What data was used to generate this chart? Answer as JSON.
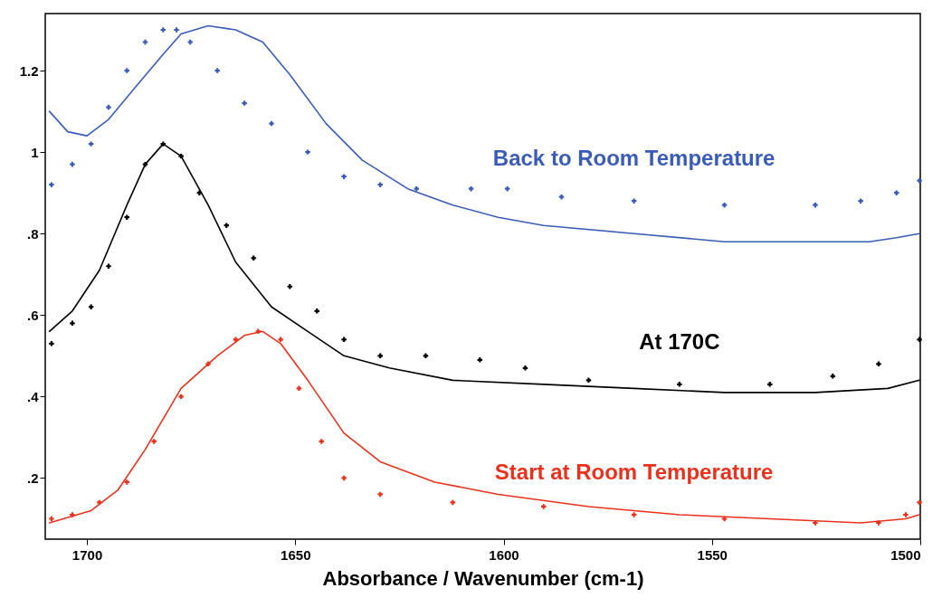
{
  "chart_data": {
    "type": "line",
    "xlabel": "Absorbance / Wavenumber (cm-1)",
    "xlim": [
      1710,
      1500
    ],
    "xticks": [
      1700,
      1650,
      1600,
      1550,
      1500
    ],
    "ylim": [
      0.05,
      1.34
    ],
    "yticks": [
      {
        "value": 0.2,
        "label": ".2"
      },
      {
        "value": 0.4,
        "label": ".4"
      },
      {
        "value": 0.6,
        "label": ".6"
      },
      {
        "value": 0.8,
        "label": ".8"
      },
      1,
      1.2
    ],
    "grid": false,
    "legend": false,
    "series": [
      {
        "marker": "none",
        "color": "#3a5cb8",
        "x": [
          1709,
          1704.6,
          1700,
          1694.8,
          1688.3,
          1681.7,
          1677.4,
          1670.9,
          1664.3,
          1657.8,
          1651.3,
          1642.6,
          1633.9,
          1623,
          1612.2,
          1601.3,
          1590.4,
          1568.7,
          1547,
          1525.2,
          1512.2,
          1505.7,
          1500.2
        ],
        "values": [
          1.1,
          1.05,
          1.04,
          1.08,
          1.16,
          1.24,
          1.29,
          1.31,
          1.3,
          1.27,
          1.19,
          1.07,
          0.98,
          0.91,
          0.87,
          0.84,
          0.82,
          0.8,
          0.78,
          0.78,
          0.78,
          0.79,
          0.8
        ]
      },
      {
        "type": "scatter",
        "marker": "cross",
        "name": "Back to Room Temperature",
        "color": "#3a5cb8",
        "x": [
          1708.5,
          1703.5,
          1699,
          1694.8,
          1690.4,
          1686,
          1681.7,
          1678.5,
          1675.2,
          1668.7,
          1662.2,
          1655.7,
          1647,
          1638.3,
          1629.6,
          1620.9,
          1607.8,
          1599.1,
          1586.1,
          1568.7,
          1547,
          1525.2,
          1514.3,
          1505.7,
          1500.2
        ],
        "values": [
          0.92,
          0.97,
          1.02,
          1.11,
          1.2,
          1.27,
          1.3,
          1.3,
          1.27,
          1.2,
          1.12,
          1.07,
          1.0,
          0.94,
          0.92,
          0.91,
          0.91,
          0.91,
          0.89,
          0.88,
          0.87,
          0.87,
          0.88,
          0.9,
          0.93
        ]
      },
      {
        "marker": "none",
        "color": "#000000",
        "x": [
          1709,
          1703.5,
          1697,
          1690.4,
          1686,
          1681.7,
          1677.4,
          1670.9,
          1664.3,
          1655.7,
          1647,
          1638.3,
          1627.4,
          1612.2,
          1590.4,
          1568.7,
          1547,
          1525.2,
          1507.8,
          1500.2
        ],
        "values": [
          0.56,
          0.61,
          0.71,
          0.87,
          0.97,
          1.02,
          0.99,
          0.87,
          0.73,
          0.62,
          0.56,
          0.5,
          0.47,
          0.44,
          0.43,
          0.42,
          0.41,
          0.41,
          0.42,
          0.44
        ]
      },
      {
        "type": "scatter",
        "marker": "cross",
        "name": "At 170C",
        "color": "#000000",
        "x": [
          1708.5,
          1703.5,
          1699,
          1694.8,
          1690.4,
          1686,
          1681.7,
          1677.4,
          1673,
          1666.5,
          1660,
          1651.3,
          1644.8,
          1638.3,
          1629.6,
          1618.7,
          1605.7,
          1594.8,
          1579.6,
          1557.8,
          1536.1,
          1521,
          1510,
          1500.2
        ],
        "values": [
          0.53,
          0.58,
          0.62,
          0.72,
          0.84,
          0.97,
          1.02,
          0.99,
          0.9,
          0.82,
          0.74,
          0.67,
          0.61,
          0.54,
          0.5,
          0.5,
          0.49,
          0.47,
          0.44,
          0.43,
          0.43,
          0.45,
          0.48,
          0.54
        ]
      },
      {
        "marker": "none",
        "color": "#e8321e",
        "x": [
          1709,
          1699,
          1692.6,
          1686,
          1677.4,
          1668.7,
          1662.2,
          1657.8,
          1653.5,
          1647,
          1638.3,
          1629.6,
          1616.5,
          1601.3,
          1579.6,
          1557.8,
          1536.1,
          1514.3,
          1503.5,
          1500.2
        ],
        "values": [
          0.09,
          0.12,
          0.17,
          0.27,
          0.42,
          0.5,
          0.55,
          0.56,
          0.53,
          0.44,
          0.31,
          0.24,
          0.19,
          0.16,
          0.13,
          0.11,
          0.1,
          0.09,
          0.1,
          0.11
        ]
      },
      {
        "type": "scatter",
        "marker": "cross",
        "name": "Start at Room Temperature",
        "color": "#e8321e",
        "x": [
          1708.5,
          1703.5,
          1697,
          1690.4,
          1683.9,
          1677.4,
          1670.9,
          1664.3,
          1658.9,
          1653.5,
          1649.1,
          1643.7,
          1638.3,
          1629.6,
          1612.2,
          1590.4,
          1568.7,
          1547,
          1525.2,
          1510,
          1503.5,
          1500.2
        ],
        "values": [
          0.1,
          0.11,
          0.14,
          0.19,
          0.29,
          0.4,
          0.48,
          0.54,
          0.56,
          0.54,
          0.42,
          0.29,
          0.2,
          0.16,
          0.14,
          0.13,
          0.11,
          0.1,
          0.09,
          0.09,
          0.11,
          0.14
        ]
      }
    ]
  }
}
